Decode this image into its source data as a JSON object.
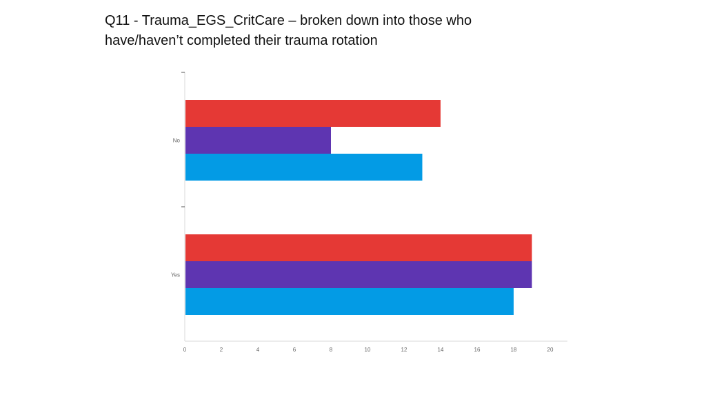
{
  "title_lines": [
    "Q11 - Trauma_EGS_CritCare – broken down into those who",
    "have/haven’t completed their trauma rotation"
  ],
  "chart_data": {
    "type": "bar",
    "orientation": "horizontal",
    "categories": [
      "No",
      "Yes"
    ],
    "series": [
      {
        "color": "#e53935",
        "values": [
          14,
          19
        ]
      },
      {
        "color": "#5e35b1",
        "values": [
          8,
          19
        ]
      },
      {
        "color": "#039be5",
        "values": [
          13,
          18
        ]
      }
    ],
    "xlim": [
      0,
      21
    ],
    "xticks": [
      0,
      2,
      4,
      6,
      8,
      10,
      12,
      14,
      16,
      18,
      20
    ],
    "grid": false,
    "legend": "none"
  }
}
